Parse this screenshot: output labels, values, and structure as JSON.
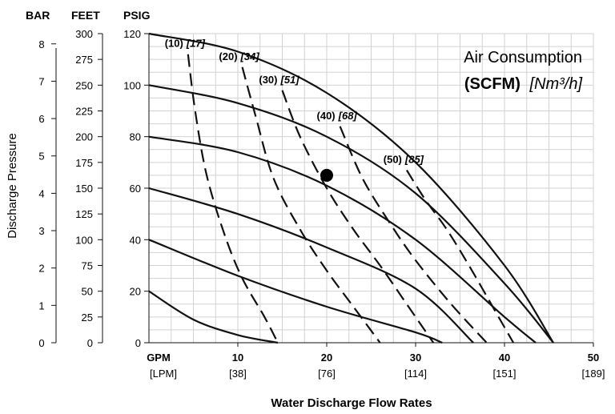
{
  "chart_data": {
    "type": "line",
    "title": "Air Consumption",
    "subtitle_bold": "(SCFM)",
    "subtitle_italic": "[Nm³/h]",
    "xlabel": "Water Discharge Flow Rates",
    "ylabel": "Discharge Pressure",
    "x_unit_primary": "GPM",
    "x_unit_secondary": "[LPM]",
    "xlim": [
      0,
      50
    ],
    "ylim": [
      0,
      120
    ],
    "grid": true,
    "x_ticks": [
      {
        "v": 10,
        "gpm": "10",
        "lpm": "[38]"
      },
      {
        "v": 20,
        "gpm": "20",
        "lpm": "[76]"
      },
      {
        "v": 30,
        "gpm": "30",
        "lpm": "[114]"
      },
      {
        "v": 40,
        "gpm": "40",
        "lpm": "[151]"
      },
      {
        "v": 50,
        "gpm": "50",
        "lpm": "[189]"
      }
    ],
    "y_axes": {
      "bar": {
        "title": "BAR",
        "ticks": [
          "0",
          "1",
          "2",
          "3",
          "4",
          "5",
          "6",
          "7",
          "8"
        ]
      },
      "feet": {
        "title": "FEET",
        "ticks": [
          "0",
          "25",
          "50",
          "75",
          "100",
          "125",
          "150",
          "175",
          "200",
          "225",
          "250",
          "275",
          "300"
        ]
      },
      "psig": {
        "title": "PSIG",
        "ticks": [
          "0",
          "20",
          "40",
          "60",
          "80",
          "100",
          "120"
        ]
      }
    },
    "performance_curves": [
      {
        "values": [
          [
            0,
            20
          ],
          [
            5,
            9
          ],
          [
            10,
            3
          ],
          [
            14.5,
            0
          ]
        ]
      },
      {
        "values": [
          [
            0,
            40
          ],
          [
            10,
            26
          ],
          [
            20,
            14
          ],
          [
            30,
            4
          ],
          [
            33,
            0
          ]
        ]
      },
      {
        "values": [
          [
            0,
            60
          ],
          [
            10,
            50
          ],
          [
            20,
            37
          ],
          [
            30,
            21
          ],
          [
            36.5,
            0
          ]
        ]
      },
      {
        "values": [
          [
            0,
            80
          ],
          [
            10,
            74
          ],
          [
            20,
            61
          ],
          [
            30,
            40
          ],
          [
            40,
            10
          ],
          [
            43.5,
            0
          ]
        ]
      },
      {
        "values": [
          [
            0,
            100
          ],
          [
            10,
            93
          ],
          [
            20,
            80
          ],
          [
            30,
            58
          ],
          [
            40,
            23
          ],
          [
            45.5,
            0
          ]
        ]
      },
      {
        "values": [
          [
            0,
            120
          ],
          [
            10,
            113
          ],
          [
            20,
            97
          ],
          [
            30,
            70
          ],
          [
            40,
            30
          ],
          [
            45.5,
            0
          ]
        ]
      }
    ],
    "air_consumption_curves": [
      {
        "scfm": "(10)",
        "nm3h": "[17]",
        "values": [
          [
            4.4,
            112
          ],
          [
            5.2,
            90
          ],
          [
            6.5,
            65
          ],
          [
            8.5,
            42
          ],
          [
            10.5,
            25
          ],
          [
            13,
            10
          ],
          [
            14.5,
            0
          ]
        ]
      },
      {
        "scfm": "(20)",
        "nm3h": "[34]",
        "values": [
          [
            10.5,
            107
          ],
          [
            12,
            88
          ],
          [
            14,
            64
          ],
          [
            17,
            44
          ],
          [
            20,
            28
          ],
          [
            23,
            14
          ],
          [
            26,
            0
          ]
        ]
      },
      {
        "scfm": "(30)",
        "nm3h": "[51]",
        "values": [
          [
            15,
            98
          ],
          [
            17,
            80
          ],
          [
            20,
            60
          ],
          [
            23,
            44
          ],
          [
            26,
            30
          ],
          [
            29,
            15
          ],
          [
            32,
            0
          ]
        ]
      },
      {
        "scfm": "(40)",
        "nm3h": "[68]",
        "values": [
          [
            21.5,
            84
          ],
          [
            24,
            64
          ],
          [
            27,
            47
          ],
          [
            30,
            32
          ],
          [
            34,
            15
          ],
          [
            38,
            0
          ]
        ]
      },
      {
        "scfm": "(50)",
        "nm3h": "[85]",
        "values": [
          [
            29,
            67
          ],
          [
            31,
            56
          ],
          [
            33.5,
            44
          ],
          [
            36,
            30
          ],
          [
            39,
            12
          ],
          [
            41,
            0
          ]
        ]
      }
    ],
    "marker_point": {
      "x": 20,
      "y": 65
    }
  }
}
